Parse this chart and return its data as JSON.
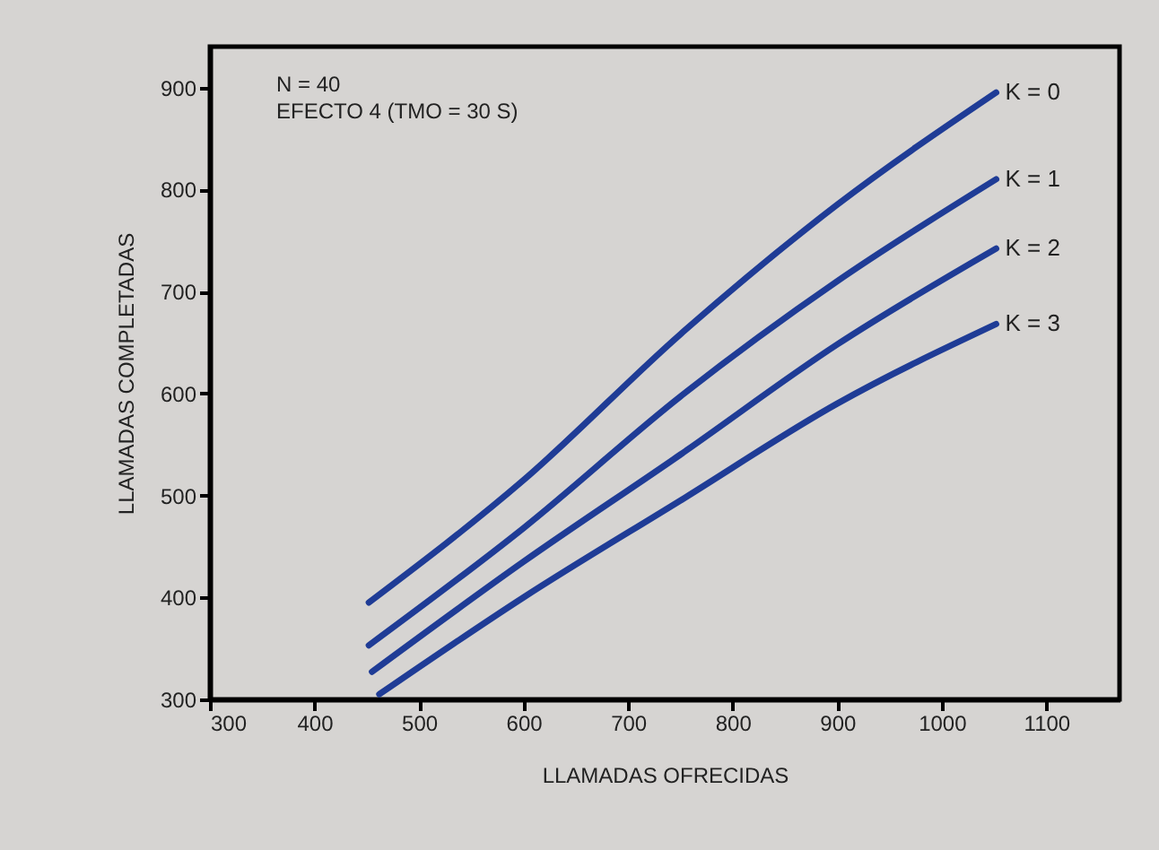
{
  "chart_data": {
    "type": "line",
    "xlabel": "LLAMADAS OFRECIDAS",
    "ylabel": "LLAMADAS COMPLETADAS",
    "annotations": [
      "N = 40",
      "EFECTO 4 (TMO = 30 S)"
    ],
    "xlim": [
      300,
      1170
    ],
    "xticks": [
      300,
      400,
      500,
      600,
      700,
      800,
      900,
      1000,
      1100
    ],
    "ylim": [
      300,
      940
    ],
    "yticks": [
      300,
      400,
      500,
      600,
      700,
      800,
      900
    ],
    "grid": false,
    "marker": "none",
    "line_style": "solid",
    "series": [
      {
        "name": "K = 0",
        "color": "#1f3c96",
        "x": [
          452,
          600,
          750,
          900,
          1052
        ],
        "values": [
          395,
          515,
          658,
          785,
          895
        ]
      },
      {
        "name": "K = 1",
        "color": "#1f3c96",
        "x": [
          452,
          600,
          750,
          900,
          1052
        ],
        "values": [
          353,
          468,
          597,
          710,
          810
        ]
      },
      {
        "name": "K = 2",
        "color": "#1f3c96",
        "x": [
          455,
          600,
          750,
          900,
          1052
        ],
        "values": [
          327,
          435,
          540,
          648,
          742
        ]
      },
      {
        "name": "K = 3",
        "color": "#1f3c96",
        "x": [
          462,
          600,
          750,
          900,
          1052
        ],
        "values": [
          305,
          400,
          495,
          590,
          668
        ]
      }
    ]
  }
}
